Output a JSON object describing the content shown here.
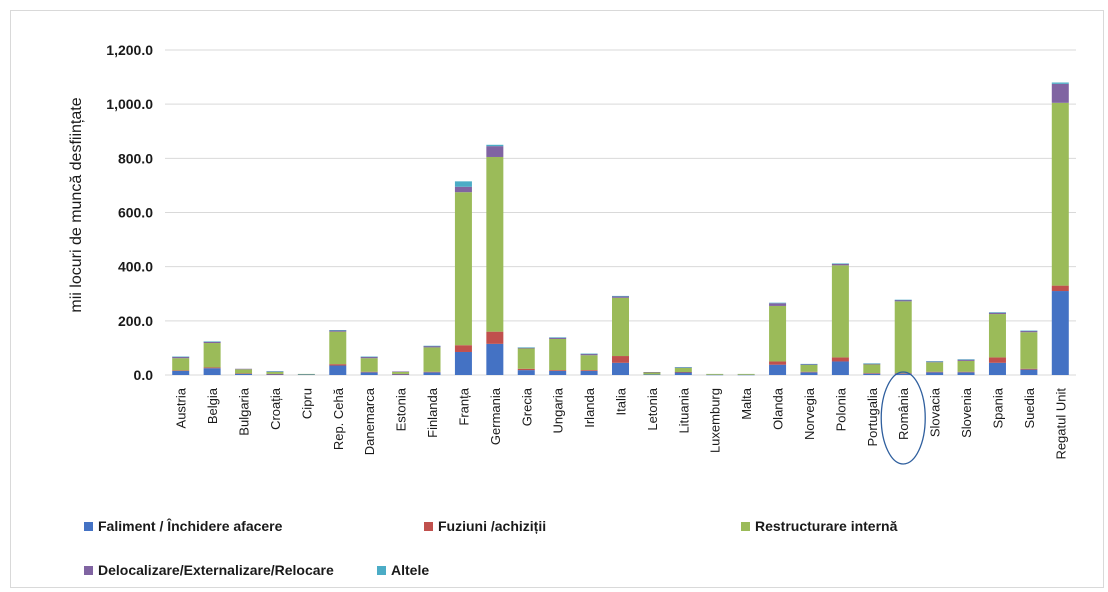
{
  "chart_data": {
    "type": "bar",
    "stacked": true,
    "ylabel": "mii locuri de muncă desființate",
    "ylim": [
      0,
      1200
    ],
    "yticks": [
      "0.0",
      "200.0",
      "400.0",
      "600.0",
      "800.0",
      "1,000.0",
      "1,200.0"
    ],
    "grid": true,
    "legend_position": "bottom",
    "highlighted_category": "România",
    "categories": [
      "Austria",
      "Belgia",
      "Bulgaria",
      "Croația",
      "Cipru",
      "Rep. Cehă",
      "Danemarca",
      "Estonia",
      "Finlanda",
      "Franța",
      "Germania",
      "Grecia",
      "Ungaria",
      "Irlanda",
      "Italia",
      "Letonia",
      "Lituania",
      "Luxemburg",
      "Malta",
      "Olanda",
      "Norvegia",
      "Polonia",
      "Portugalia",
      "România",
      "Slovacia",
      "Slovenia",
      "Spania",
      "Suedia",
      "Regatul Unit"
    ],
    "series": [
      {
        "name": "Faliment / Închidere afacere",
        "color": "#4472c4",
        "values": [
          15,
          25,
          5,
          3,
          2,
          35,
          10,
          3,
          10,
          85,
          115,
          18,
          15,
          15,
          45,
          2,
          10,
          1,
          1,
          38,
          10,
          50,
          5,
          5,
          10,
          10,
          45,
          20,
          310
        ]
      },
      {
        "name": "Fuziuni /achiziții",
        "color": "#c0504d",
        "values": [
          2,
          3,
          1,
          1,
          0,
          5,
          2,
          1,
          2,
          25,
          45,
          5,
          3,
          3,
          25,
          0,
          1,
          0,
          0,
          12,
          2,
          15,
          2,
          2,
          2,
          2,
          20,
          3,
          20
        ]
      },
      {
        "name": "Restructurare internă",
        "color": "#9bbb59",
        "values": [
          45,
          90,
          15,
          8,
          2,
          120,
          50,
          8,
          90,
          565,
          645,
          75,
          115,
          55,
          215,
          8,
          15,
          3,
          3,
          205,
          25,
          340,
          32,
          265,
          35,
          40,
          160,
          135,
          675
        ]
      },
      {
        "name": "Delocalizare/Externalizare/Relocare",
        "color": "#8064a2",
        "values": [
          5,
          5,
          2,
          1,
          0,
          5,
          5,
          1,
          5,
          20,
          40,
          3,
          5,
          5,
          5,
          1,
          2,
          0,
          0,
          10,
          3,
          5,
          3,
          5,
          3,
          5,
          5,
          5,
          70
        ]
      },
      {
        "name": "Altele",
        "color": "#4bacc6",
        "values": [
          1,
          1,
          0,
          1,
          0,
          1,
          1,
          0,
          1,
          20,
          5,
          1,
          1,
          1,
          2,
          0,
          1,
          0,
          0,
          2,
          1,
          2,
          1,
          1,
          1,
          1,
          2,
          1,
          5
        ]
      }
    ]
  },
  "legend": {
    "items": [
      {
        "label": "Faliment / Închidere afacere",
        "color": "#4472c4"
      },
      {
        "label": "Fuziuni /achiziții",
        "color": "#c0504d"
      },
      {
        "label": "Restructurare internă",
        "color": "#9bbb59"
      },
      {
        "label": "Delocalizare/Externalizare/Relocare",
        "color": "#8064a2"
      },
      {
        "label": "Altele",
        "color": "#4bacc6"
      }
    ]
  }
}
